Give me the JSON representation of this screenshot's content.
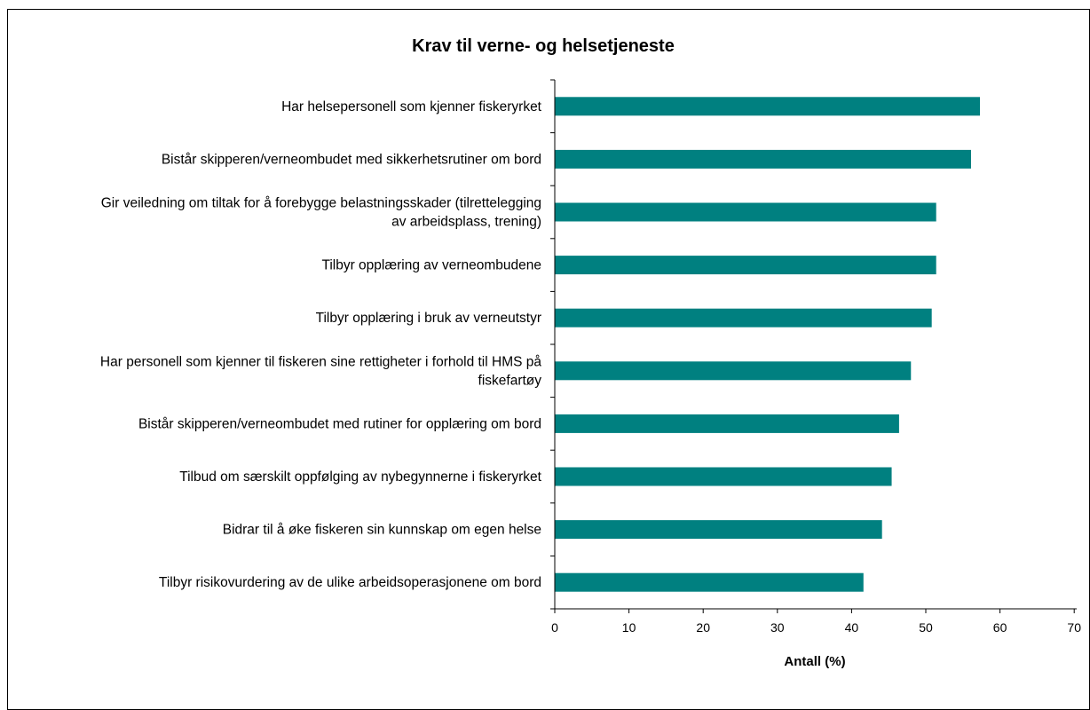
{
  "chart_data": {
    "type": "bar",
    "orientation": "horizontal",
    "title": "Krav til verne- og helsetjeneste",
    "xlabel": "Antall (%)",
    "ylabel": "",
    "categories": [
      [
        "Har helsepersonell som kjenner fiskeryrket"
      ],
      [
        "Bistår skipperen/verneombudet med sikkerhetsrutiner om bord"
      ],
      [
        "Gir veiledning om tiltak for å forebygge belastningsskader (tilrettelegging",
        "av arbeidsplass, trening)"
      ],
      [
        "Tilbyr opplæring av verneombudene"
      ],
      [
        "Tilbyr opplæring i bruk av verneutstyr"
      ],
      [
        "Har personell som kjenner til fiskeren sine rettigheter i forhold til HMS på",
        "fiskefartøy"
      ],
      [
        "Bistår skipperen/verneombudet med rutiner for opplæring om bord"
      ],
      [
        "Tilbud om særskilt oppfølging av nybegynnerne i fiskeryrket"
      ],
      [
        "Bidrar til å øke fiskeren sin kunnskap om egen helse"
      ],
      [
        "Tilbyr risikovurdering av de ulike arbeidsoperasjonene om bord"
      ]
    ],
    "values": [
      57.3,
      56.1,
      51.4,
      51.4,
      50.8,
      48.0,
      46.4,
      45.4,
      44.1,
      41.6
    ],
    "xlim": [
      0,
      70
    ],
    "xticks": [
      "0",
      "10",
      "20",
      "30",
      "40",
      "50",
      "60",
      "70"
    ],
    "grid": false,
    "legend": "none",
    "bar_color": "#008080"
  }
}
